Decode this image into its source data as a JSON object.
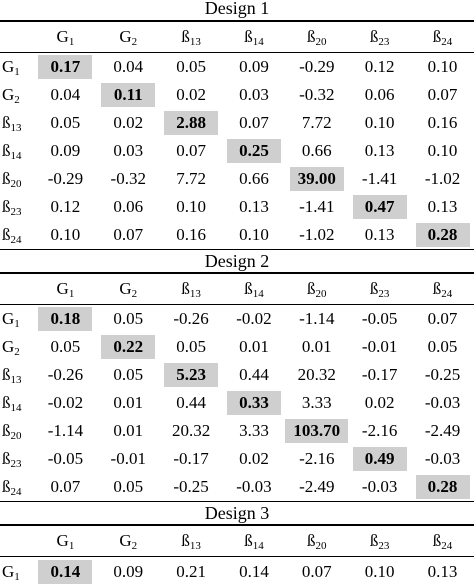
{
  "labels": [
    "G1",
    "G2",
    "ß13",
    "ß14",
    "ß20",
    "ß23",
    "ß24"
  ],
  "label_parts": [
    {
      "base": "G",
      "sub": "1"
    },
    {
      "base": "G",
      "sub": "2"
    },
    {
      "base": "ß",
      "sub": "13"
    },
    {
      "base": "ß",
      "sub": "14"
    },
    {
      "base": "ß",
      "sub": "20"
    },
    {
      "base": "ß",
      "sub": "23"
    },
    {
      "base": "ß",
      "sub": "24"
    }
  ],
  "designs": [
    {
      "title": "Design 1",
      "rows": [
        [
          "0.17",
          "0.04",
          "0.05",
          "0.09",
          "-0.29",
          "0.12",
          "0.10"
        ],
        [
          "0.04",
          "0.11",
          "0.02",
          "0.03",
          "-0.32",
          "0.06",
          "0.07"
        ],
        [
          "0.05",
          "0.02",
          "2.88",
          "0.07",
          "7.72",
          "0.10",
          "0.16"
        ],
        [
          "0.09",
          "0.03",
          "0.07",
          "0.25",
          "0.66",
          "0.13",
          "0.10"
        ],
        [
          "-0.29",
          "-0.32",
          "7.72",
          "0.66",
          "39.00",
          "-1.41",
          "-1.02"
        ],
        [
          "0.12",
          "0.06",
          "0.10",
          "0.13",
          "-1.41",
          "0.47",
          "0.13"
        ],
        [
          "0.10",
          "0.07",
          "0.16",
          "0.10",
          "-1.02",
          "0.13",
          "0.28"
        ]
      ]
    },
    {
      "title": "Design 2",
      "rows": [
        [
          "0.18",
          "0.05",
          "-0.26",
          "-0.02",
          "-1.14",
          "-0.05",
          "0.07"
        ],
        [
          "0.05",
          "0.22",
          "0.05",
          "0.01",
          "0.01",
          "-0.01",
          "0.05"
        ],
        [
          "-0.26",
          "0.05",
          "5.23",
          "0.44",
          "20.32",
          "-0.17",
          "-0.25"
        ],
        [
          "-0.02",
          "0.01",
          "0.44",
          "0.33",
          "3.33",
          "0.02",
          "-0.03"
        ],
        [
          "-1.14",
          "0.01",
          "20.32",
          "3.33",
          "103.70",
          "-2.16",
          "-2.49"
        ],
        [
          "-0.05",
          "-0.01",
          "-0.17",
          "0.02",
          "-2.16",
          "0.49",
          "-0.03"
        ],
        [
          "0.07",
          "0.05",
          "-0.25",
          "-0.03",
          "-2.49",
          "-0.03",
          "0.28"
        ]
      ]
    },
    {
      "title": "Design 3",
      "rows": [
        [
          "0.14",
          "0.09",
          "0.21",
          "0.14",
          "0.07",
          "0.10",
          "0.13"
        ]
      ]
    }
  ]
}
